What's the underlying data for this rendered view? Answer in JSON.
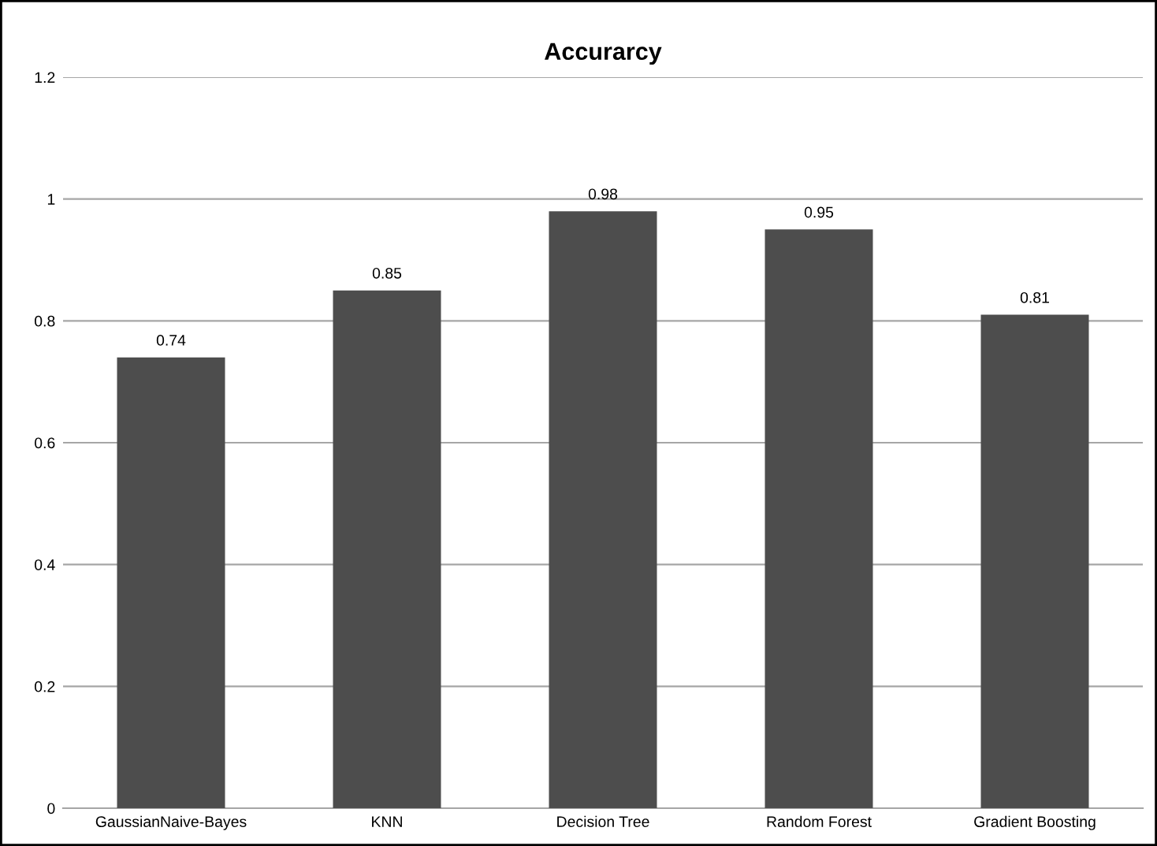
{
  "chart_data": {
    "type": "bar",
    "title": "Accurarcy",
    "categories": [
      "GaussianNaive-Bayes",
      "KNN",
      "Decision Tree",
      "Random Forest",
      "Gradient Boosting"
    ],
    "values": [
      0.74,
      0.85,
      0.98,
      0.95,
      0.81
    ],
    "color": "#4d4d4d",
    "ylim": [
      0,
      1.2
    ],
    "yticks": [
      0,
      0.2,
      0.4,
      0.6,
      0.8,
      1,
      1.2
    ],
    "grid": "y",
    "data_labels": true,
    "legend": false
  }
}
